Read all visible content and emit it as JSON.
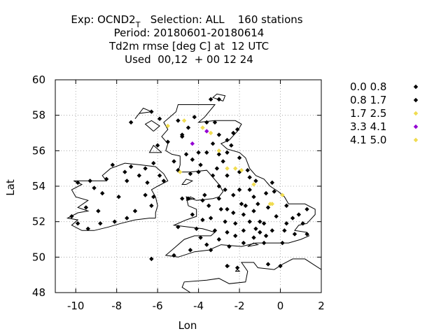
{
  "chart_data": {
    "type": "scatter",
    "title_lines": [
      {
        "parts": [
          "Exp: OCND2",
          "T",
          "   Selection: ALL    160 stations"
        ]
      },
      {
        "text": "Period: 20180601-20180614"
      },
      {
        "text": "Td2m rmse [deg C] at  12 UTC"
      },
      {
        "text": "Used  00,12  + 00 12 24"
      }
    ],
    "xlabel": "Lon",
    "ylabel": "Lat",
    "xlim": [
      -11,
      2
    ],
    "ylim": [
      48,
      60
    ],
    "xticks": [
      -10,
      -8,
      -6,
      -4,
      -2,
      0,
      2
    ],
    "yticks": [
      48,
      50,
      52,
      54,
      56,
      58,
      60
    ],
    "grid": true,
    "legend_position": "right",
    "series": [
      {
        "name": "0.0 0.8",
        "color": "#000000",
        "points": [
          [
            -3.4,
            58.9
          ],
          [
            -3.0,
            58.9
          ],
          [
            -5.9,
            57.8
          ],
          [
            -5.0,
            57.7
          ],
          [
            -4.2,
            57.9
          ],
          [
            -3.6,
            57.6
          ],
          [
            -3.2,
            57.6
          ],
          [
            -2.1,
            57.2
          ],
          [
            -2.3,
            57.0
          ],
          [
            -4.5,
            57.3
          ],
          [
            -6.3,
            58.2
          ],
          [
            -7.3,
            57.6
          ],
          [
            -4.8,
            56.8
          ],
          [
            -5.5,
            56.5
          ],
          [
            -6.0,
            56.3
          ],
          [
            -3.3,
            56.4
          ],
          [
            -3.0,
            56.9
          ],
          [
            -2.6,
            56.6
          ],
          [
            -2.4,
            56.3
          ],
          [
            -4.6,
            55.8
          ],
          [
            -5.2,
            55.4
          ],
          [
            -4.0,
            55.9
          ],
          [
            -3.6,
            55.9
          ],
          [
            -3.0,
            55.8
          ],
          [
            -2.6,
            55.9
          ],
          [
            -2.0,
            55.6
          ],
          [
            -4.3,
            55.5
          ],
          [
            -3.9,
            55.2
          ],
          [
            -3.1,
            55.0
          ],
          [
            -5.0,
            54.9
          ],
          [
            -4.4,
            54.7
          ],
          [
            -4.0,
            54.8
          ],
          [
            -3.3,
            54.6
          ],
          [
            -2.6,
            54.6
          ],
          [
            -2.0,
            54.8
          ],
          [
            -1.6,
            54.9
          ],
          [
            -1.5,
            54.5
          ],
          [
            -1.2,
            54.3
          ],
          [
            -0.4,
            54.2
          ],
          [
            -6.2,
            55.3
          ],
          [
            -6.6,
            55.0
          ],
          [
            -7.3,
            55.1
          ],
          [
            -8.2,
            55.2
          ],
          [
            -7.6,
            54.8
          ],
          [
            -6.9,
            54.6
          ],
          [
            -5.9,
            54.6
          ],
          [
            -5.7,
            54.3
          ],
          [
            -6.5,
            54.2
          ],
          [
            -7.5,
            54.3
          ],
          [
            -8.5,
            54.4
          ],
          [
            -9.3,
            54.3
          ],
          [
            -9.9,
            54.2
          ],
          [
            -9.1,
            53.9
          ],
          [
            -8.7,
            53.6
          ],
          [
            -7.9,
            53.4
          ],
          [
            -6.6,
            53.5
          ],
          [
            -6.2,
            53.4
          ],
          [
            -6.3,
            52.9
          ],
          [
            -7.1,
            52.6
          ],
          [
            -7.5,
            52.2
          ],
          [
            -8.1,
            52.0
          ],
          [
            -8.8,
            51.9
          ],
          [
            -9.4,
            51.6
          ],
          [
            -9.9,
            51.9
          ],
          [
            -8.9,
            52.6
          ],
          [
            -9.5,
            52.8
          ],
          [
            -10.2,
            52.3
          ],
          [
            -4.8,
            53.3
          ],
          [
            -4.5,
            53.3
          ],
          [
            -3.8,
            53.2
          ],
          [
            -3.0,
            53.3
          ],
          [
            -2.3,
            53.5
          ],
          [
            -2.7,
            53.8
          ],
          [
            -2.0,
            53.8
          ],
          [
            -1.5,
            53.8
          ],
          [
            -1.3,
            53.4
          ],
          [
            -0.7,
            53.6
          ],
          [
            -0.3,
            53.7
          ],
          [
            -3.5,
            52.9
          ],
          [
            -2.9,
            52.7
          ],
          [
            -2.3,
            52.5
          ],
          [
            -1.8,
            52.4
          ],
          [
            -1.3,
            52.6
          ],
          [
            -0.6,
            52.8
          ],
          [
            0.3,
            52.9
          ],
          [
            1.3,
            52.7
          ],
          [
            -4.3,
            52.4
          ],
          [
            -3.8,
            52.1
          ],
          [
            -2.7,
            52.0
          ],
          [
            -2.2,
            51.9
          ],
          [
            -1.5,
            52.0
          ],
          [
            -0.8,
            51.9
          ],
          [
            0.3,
            51.9
          ],
          [
            1.1,
            51.9
          ],
          [
            -5.0,
            51.7
          ],
          [
            -4.1,
            51.6
          ],
          [
            -3.2,
            51.5
          ],
          [
            -2.6,
            51.4
          ],
          [
            -1.8,
            51.5
          ],
          [
            -1.0,
            51.4
          ],
          [
            -0.4,
            51.5
          ],
          [
            0.2,
            51.5
          ],
          [
            1.3,
            51.3
          ],
          [
            -3.9,
            51.1
          ],
          [
            -3.0,
            51.0
          ],
          [
            -2.2,
            51.2
          ],
          [
            -1.3,
            51.1
          ],
          [
            -0.7,
            51.2
          ],
          [
            0.7,
            51.3
          ],
          [
            -5.2,
            50.1
          ],
          [
            -4.4,
            50.4
          ],
          [
            -3.6,
            50.7
          ],
          [
            -3.4,
            50.4
          ],
          [
            -2.5,
            50.6
          ],
          [
            -1.8,
            50.8
          ],
          [
            -0.8,
            50.8
          ],
          [
            0.1,
            50.8
          ],
          [
            -2.6,
            49.5
          ],
          [
            -2.1,
            49.4
          ],
          [
            -0.6,
            49.6
          ],
          [
            0.0,
            49.5
          ],
          [
            -6.3,
            49.9
          ],
          [
            -1.0,
            52.0
          ],
          [
            -2.6,
            52.7
          ],
          [
            -3.0,
            54.0
          ],
          [
            -1.9,
            53.0
          ],
          [
            -1.1,
            53.0
          ],
          [
            0.6,
            52.2
          ],
          [
            -0.2,
            52.3
          ],
          [
            -1.2,
            51.6
          ],
          [
            -3.7,
            53.5
          ]
        ]
      },
      {
        "name": "0.8 1.7",
        "color": "#000000",
        "points": [
          [
            -4.8,
            56.9
          ],
          [
            -2.8,
            55.4
          ],
          [
            -1.7,
            52.9
          ],
          [
            -3.4,
            52.2
          ],
          [
            0.9,
            52.4
          ]
        ]
      },
      {
        "name": "1.7 2.5",
        "color": "#f0dc50",
        "points": [
          [
            -5.5,
            57.4
          ],
          [
            -4.7,
            57.7
          ],
          [
            -3.8,
            57.3
          ],
          [
            -3.4,
            57.0
          ],
          [
            -3.0,
            56.0
          ],
          [
            -2.6,
            55.0
          ],
          [
            -2.2,
            55.0
          ],
          [
            -1.9,
            54.9
          ],
          [
            -1.3,
            54.1
          ],
          [
            0.1,
            53.5
          ],
          [
            -4.9,
            54.8
          ],
          [
            -0.5,
            53.0
          ]
        ]
      },
      {
        "name": "3.3 4.1",
        "color": "#9400d3",
        "points": [
          [
            -4.3,
            56.4
          ],
          [
            -3.6,
            57.1
          ]
        ]
      },
      {
        "name": "4.1 5.0",
        "color": "#f0dc50",
        "points": [
          [
            -0.4,
            53.0
          ]
        ]
      }
    ]
  }
}
